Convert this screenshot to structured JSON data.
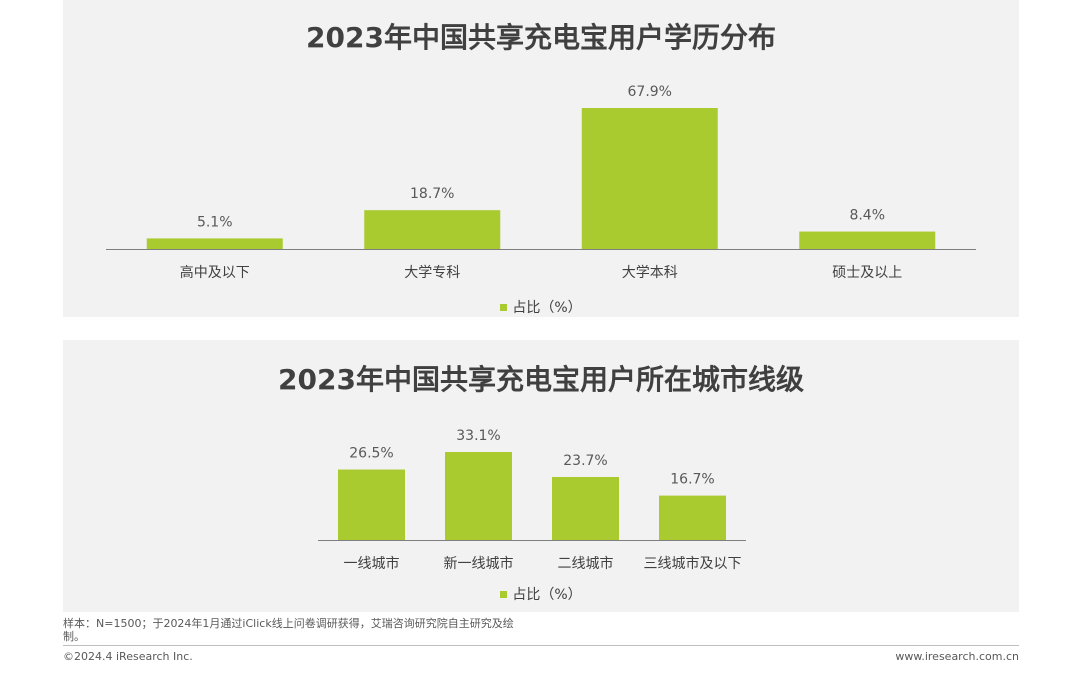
{
  "chart_data": [
    {
      "type": "bar",
      "title": "2023年中国共享充电宝用户学历分布",
      "categories": [
        "高中及以下",
        "大学专科",
        "大学本科",
        "硕士及以上"
      ],
      "series": [
        {
          "name": "占比（%）",
          "values": [
            5.1,
            18.7,
            67.9,
            8.4
          ]
        }
      ],
      "value_labels": [
        "5.1%",
        "18.7%",
        "67.9%",
        "8.4%"
      ],
      "ylim": [
        0,
        67.9
      ],
      "grid": false,
      "legend": "bottom",
      "color": "#a9cb2f"
    },
    {
      "type": "bar",
      "title": "2023年中国共享充电宝用户所在城市线级",
      "categories": [
        "一线城市",
        "新一线城市",
        "二线城市",
        "三线城市及以下"
      ],
      "series": [
        {
          "name": "占比（%）",
          "values": [
            26.5,
            33.1,
            23.7,
            16.7
          ]
        }
      ],
      "value_labels": [
        "26.5%",
        "33.1%",
        "23.7%",
        "16.7%"
      ],
      "ylim": [
        0,
        33.1
      ],
      "grid": false,
      "legend": "bottom",
      "color": "#a9cb2f"
    }
  ],
  "footer": {
    "note": "样本：N=1500；于2024年1月通过iClick线上问卷调研获得，艾瑞咨询研究院自主研究及绘制。",
    "copyright": "©2024.4 iResearch Inc.",
    "website": "www.iresearch.com.cn"
  }
}
